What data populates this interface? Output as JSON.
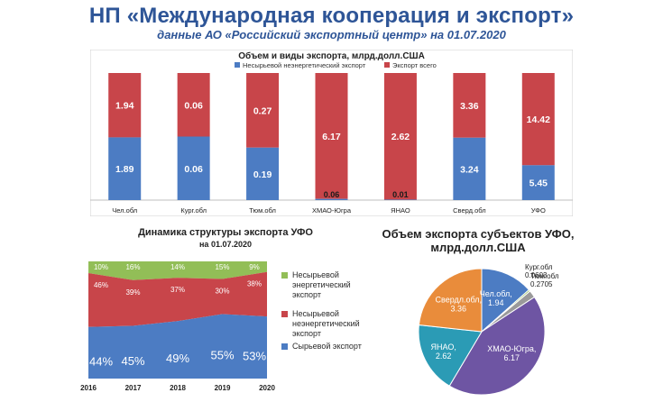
{
  "header": {
    "title": "НП «Международная кооперация и экспорт»",
    "subtitle": "данные АО «Российский экспортный центр» на 01.07.2020"
  },
  "colors": {
    "blue": "#4c7cc3",
    "red": "#c8454a",
    "green": "#92be57",
    "teal": "#2b9bb5",
    "orange": "#e98c3b",
    "purple": "#6e55a3",
    "gray": "#9a9a9a"
  },
  "chart_data": [
    {
      "type": "bar",
      "title": "Объем и виды экспорта, млрд.долл.США",
      "categories": [
        "Чел.обл",
        "Кург.обл",
        "Тюм.обл",
        "ХМАО-Югра",
        "ЯНАО",
        "Сверд.обл",
        "УФО"
      ],
      "series": [
        {
          "name": "Несырьевой неэнергетический экспорт",
          "values": [
            1.89,
            0.06,
            0.19,
            0.06,
            0.01,
            3.24,
            5.45
          ],
          "labels": [
            "1.89",
            "0.06",
            "0.19",
            "0.06",
            "0.01",
            "3.24",
            "5.45"
          ]
        },
        {
          "name": "Экспорт всего",
          "values": [
            1.94,
            0.06,
            0.27,
            6.17,
            2.62,
            3.36,
            14.42
          ],
          "labels": [
            "1.94",
            "0.06",
            "0.27",
            "6.17",
            "2.62",
            "3.36",
            "14.42"
          ]
        }
      ],
      "legend": "top"
    },
    {
      "type": "area",
      "title": "Динамика структуры экспорта УФО",
      "subtitle": "на 01.07.2020",
      "x": [
        "2016",
        "2017",
        "2018",
        "2019",
        "2020"
      ],
      "series": [
        {
          "name": "Сырьевой экспорт",
          "values": [
            44,
            45,
            49,
            55,
            53
          ],
          "labels": [
            "44%",
            "45%",
            "49%",
            "55%",
            "53%"
          ]
        },
        {
          "name": "Несырьевой неэнергетический экспорт",
          "values": [
            46,
            39,
            37,
            30,
            38
          ],
          "labels": [
            "46%",
            "39%",
            "37%",
            "30%",
            "38%"
          ]
        },
        {
          "name": "Несырьевой энергетический экспорт",
          "values": [
            10,
            16,
            14,
            15,
            9
          ],
          "labels": [
            "10%",
            "16%",
            "14%",
            "15%",
            "9%"
          ]
        }
      ],
      "legend": "right"
    },
    {
      "type": "pie",
      "title": "Объем экспорта субъектов УФО, млрд.долл.США",
      "slices": [
        {
          "label": "Чел.обл,",
          "value": 1.94,
          "value_label": "1.94"
        },
        {
          "label": "Кург.обл",
          "value": 0.0603,
          "value_label": "0.0603"
        },
        {
          "label": "Тюм.обл",
          "value": 0.2705,
          "value_label": "0.2705"
        },
        {
          "label": "ХМАО-Югра,",
          "value": 6.17,
          "value_label": "6.17"
        },
        {
          "label": "ЯНАО,",
          "value": 2.62,
          "value_label": "2.62"
        },
        {
          "label": "Свердл.обл,",
          "value": 3.36,
          "value_label": "3.36"
        }
      ]
    }
  ]
}
